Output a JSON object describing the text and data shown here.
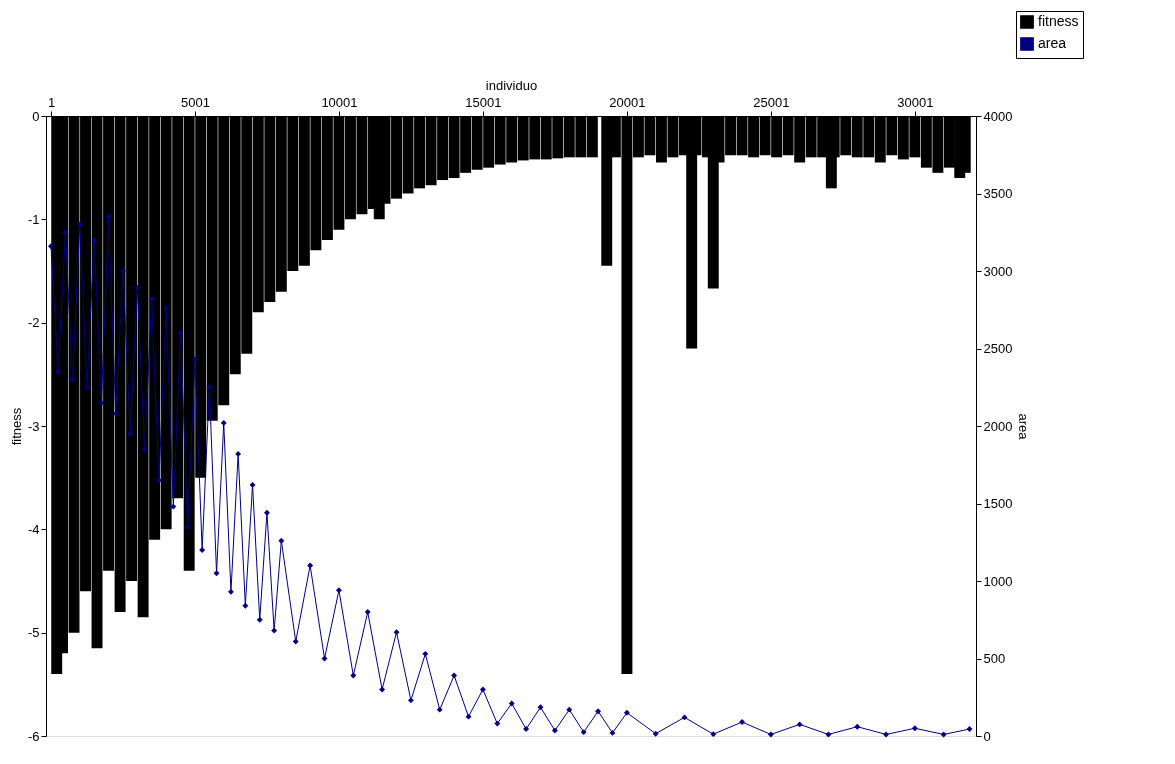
{
  "chart_data": {
    "type": "bar",
    "xlabel": "individuo",
    "ylabel": "fitness",
    "y2label": "area",
    "xlim": [
      1,
      31950
    ],
    "xticks": [
      1,
      5001,
      10001,
      15001,
      20001,
      25001,
      30001
    ],
    "ylim": [
      -6,
      0
    ],
    "yticks": [
      -6,
      -5,
      -4,
      -3,
      -2,
      -1,
      0
    ],
    "y2lim": [
      0,
      4000
    ],
    "y2ticks": [
      0,
      500,
      1000,
      1500,
      2000,
      2500,
      3000,
      3500,
      4000
    ],
    "grid": false,
    "legend": "top right",
    "marker": "diamond",
    "series": [
      {
        "name": "fitness",
        "color": "#000000",
        "x": [
          200,
          400,
          800,
          1200,
          1600,
          2000,
          2400,
          2800,
          3200,
          3600,
          4000,
          4400,
          4800,
          5200,
          5600,
          6000,
          6400,
          6800,
          7200,
          7600,
          8000,
          8400,
          8800,
          9200,
          9600,
          10000,
          10400,
          10800,
          11200,
          11400,
          11600,
          12000,
          12400,
          12800,
          13200,
          13600,
          14000,
          14400,
          14800,
          15200,
          15600,
          16000,
          16400,
          16800,
          17200,
          17600,
          18000,
          18400,
          18800,
          19300,
          19600,
          20001,
          20400,
          20800,
          21200,
          21600,
          22000,
          22250,
          22400,
          22800,
          23000,
          23200,
          23600,
          24000,
          24400,
          24800,
          25200,
          25600,
          26000,
          26400,
          26800,
          27100,
          27200,
          27600,
          28000,
          28400,
          28800,
          29200,
          29600,
          30000,
          30400,
          30800,
          31200,
          31560,
          31750
        ],
        "values": [
          -5.4,
          -5.2,
          -5.0,
          -4.6,
          -5.15,
          -4.4,
          -4.8,
          -4.5,
          -4.85,
          -4.1,
          -4.0,
          -3.7,
          -4.4,
          -3.5,
          -2.95,
          -2.8,
          -2.5,
          -2.3,
          -1.9,
          -1.8,
          -1.7,
          -1.5,
          -1.45,
          -1.3,
          -1.2,
          -1.1,
          -1.0,
          -0.95,
          -0.9,
          -1.0,
          -0.85,
          -0.8,
          -0.75,
          -0.7,
          -0.67,
          -0.62,
          -0.6,
          -0.55,
          -0.52,
          -0.5,
          -0.47,
          -0.45,
          -0.43,
          -0.42,
          -0.42,
          -0.41,
          -0.4,
          -0.4,
          -0.4,
          -1.45,
          -0.4,
          -5.4,
          -0.4,
          -0.38,
          -0.45,
          -0.4,
          -0.38,
          -2.25,
          -0.38,
          -0.4,
          -1.67,
          -0.45,
          -0.38,
          -0.38,
          -0.4,
          -0.38,
          -0.4,
          -0.38,
          -0.45,
          -0.4,
          -0.4,
          -0.7,
          -0.4,
          -0.38,
          -0.4,
          -0.4,
          -0.45,
          -0.38,
          -0.42,
          -0.4,
          -0.5,
          -0.55,
          -0.5,
          -0.6,
          -0.55
        ]
      },
      {
        "name": "area",
        "type": "line",
        "axis": "y2",
        "color": "#000080",
        "x": [
          1,
          250,
          500,
          750,
          1000,
          1250,
          1500,
          1750,
          2000,
          2250,
          2500,
          2750,
          3000,
          3250,
          3500,
          3750,
          4000,
          4250,
          4500,
          4750,
          5000,
          5250,
          5500,
          5750,
          6000,
          6250,
          6500,
          6750,
          7000,
          7250,
          7500,
          7750,
          8000,
          8500,
          9000,
          9500,
          10000,
          10500,
          11000,
          11500,
          12000,
          12500,
          13000,
          13500,
          14000,
          14500,
          15000,
          15500,
          16000,
          16500,
          17000,
          17500,
          18000,
          18500,
          19000,
          19500,
          20000,
          21000,
          22000,
          23000,
          24000,
          25000,
          26000,
          27000,
          28000,
          29000,
          30000,
          31000,
          31900
        ],
        "values": [
          3160,
          2350,
          3250,
          2300,
          3300,
          2250,
          3200,
          2150,
          3350,
          2080,
          3000,
          1950,
          2890,
          1850,
          2820,
          1650,
          2760,
          1480,
          2600,
          1350,
          2430,
          1200,
          2250,
          1050,
          2020,
          930,
          1820,
          840,
          1620,
          750,
          1440,
          680,
          1260,
          610,
          1100,
          500,
          940,
          390,
          800,
          300,
          670,
          230,
          530,
          170,
          390,
          125,
          300,
          80,
          210,
          45,
          185,
          35,
          170,
          25,
          160,
          20,
          150,
          15,
          120,
          12,
          90,
          10,
          75,
          10,
          60,
          10,
          50,
          10,
          45
        ]
      }
    ]
  }
}
